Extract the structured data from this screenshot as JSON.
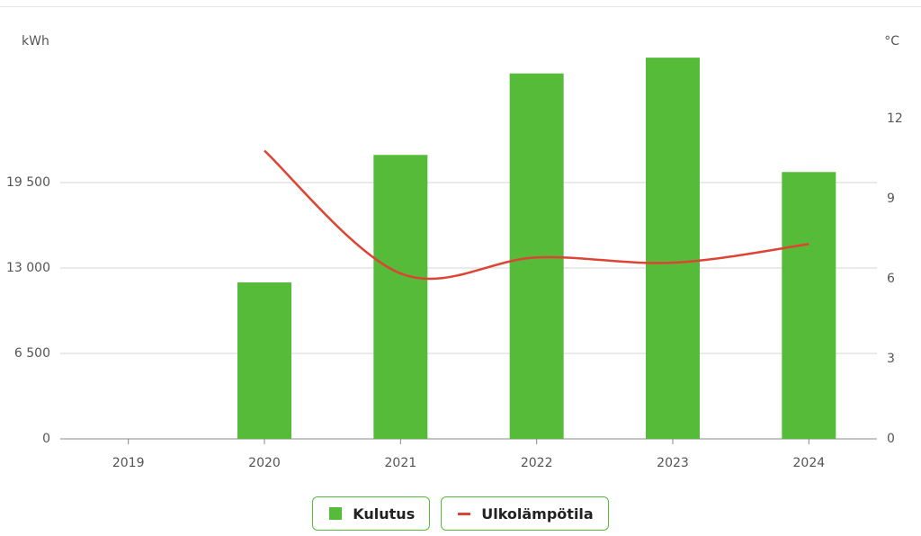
{
  "chart_data": {
    "type": "bar-line",
    "y_label": "kWh",
    "y2_label": "°C",
    "categories": [
      "2019",
      "2020",
      "2021",
      "2022",
      "2023",
      "2024"
    ],
    "series": [
      {
        "name": "Kulutus",
        "type": "bar",
        "color": "#55bb38",
        "values": [
          null,
          11900,
          21600,
          27800,
          29000,
          20300
        ]
      },
      {
        "name": "Ulkolämpötila",
        "type": "line",
        "axis": "y2",
        "color": "#dd4433",
        "values": [
          null,
          10.8,
          6.2,
          6.8,
          6.6,
          7.3
        ]
      }
    ],
    "ylim": [
      0,
      30650
    ],
    "yticks": [
      0,
      {
        "value": 6500,
        "label": "6 500"
      },
      {
        "value": 13000,
        "label": "13 000"
      },
      {
        "value": 19500,
        "label": "19 500"
      }
    ],
    "y2lim": [
      0,
      15.1
    ],
    "y2ticks": [
      0,
      3,
      6,
      9,
      12
    ],
    "grid": true
  }
}
